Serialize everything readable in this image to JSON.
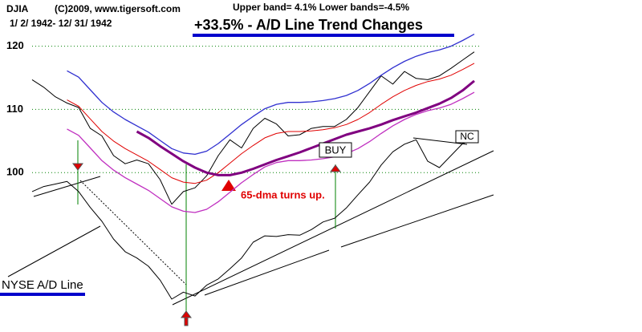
{
  "chart_data": {
    "type": "line",
    "title": "+33.5% -  A/D Line Trend Changes",
    "subtitle": "Upper band= 4.1%  Lower bands=-4.5%",
    "source": "(C)2009, www.tigersoft.com",
    "date_range": "1/ 2/ 1942- 12/ 31/ 1942",
    "annotations": {
      "dma": "65-dma turns up.",
      "buy": "BUY",
      "nc": "NC"
    },
    "categories": [
      null,
      null,
      null,
      null,
      null,
      null,
      null,
      null,
      null,
      null,
      null,
      null,
      null,
      null,
      null,
      null,
      null,
      null,
      null,
      null,
      null,
      null,
      null,
      null,
      null,
      null,
      null,
      null,
      null,
      null,
      null,
      null,
      null,
      null,
      null,
      null,
      null,
      null,
      null
    ],
    "ylim": [
      74.8,
      127.3
    ],
    "yticks": [
      100,
      110,
      120
    ],
    "grid": true,
    "series": [
      {
        "name": "DJIA",
        "color": "#000000",
        "values": [
          114.7,
          113.5,
          112,
          111,
          110.3,
          107,
          105.8,
          102.7,
          101.4,
          102,
          101.4,
          98.9,
          95,
          97,
          97.6,
          99.5,
          102.7,
          105.2,
          103.9,
          107,
          108.6,
          107.7,
          105.8,
          106,
          107,
          107.3,
          107.3,
          108.4,
          110.3,
          112.8,
          115.3,
          114,
          116,
          114.9,
          114.7,
          115.3,
          116.5,
          117.8,
          119.1
        ]
      },
      {
        "color": "#3030d0",
        "values": [
          null,
          null,
          null,
          116.1,
          115.1,
          113.1,
          111.1,
          109.6,
          108.4,
          107.4,
          106.4,
          105.1,
          103.8,
          103.1,
          102.9,
          103.4,
          104.6,
          106.1,
          107.6,
          108.9,
          110.1,
          110.8,
          111.1,
          111.1,
          111.2,
          111.4,
          111.7,
          112.2,
          113,
          114.1,
          115.4,
          116.6,
          117.6,
          118.4,
          119,
          119.4,
          120,
          120.9,
          121.9
        ]
      },
      {
        "color": "#e00000",
        "values": [
          null,
          null,
          null,
          111.5,
          110.5,
          108.5,
          106.5,
          105,
          103.8,
          102.8,
          101.8,
          100.5,
          99.2,
          98.5,
          98.3,
          98.8,
          100,
          101.5,
          103,
          104.3,
          105.5,
          106.2,
          106.5,
          106.5,
          106.6,
          106.8,
          107.1,
          107.6,
          108.4,
          109.5,
          110.8,
          112,
          113,
          113.8,
          114.4,
          114.8,
          115.4,
          116.3,
          117.3
        ]
      },
      {
        "color": "#c030c0",
        "values": [
          null,
          null,
          null,
          106.9,
          105.9,
          103.9,
          101.9,
          100.4,
          99.2,
          98.2,
          97.2,
          95.9,
          94.6,
          93.9,
          93.7,
          94.2,
          95.4,
          96.9,
          98.4,
          99.7,
          100.9,
          101.6,
          101.9,
          101.9,
          102,
          102.2,
          102.5,
          103,
          103.8,
          104.9,
          106.2,
          107.4,
          108.4,
          109.2,
          109.8,
          110.2,
          110.8,
          111.7,
          112.7
        ]
      },
      {
        "color": "#800080",
        "values": [
          null,
          null,
          null,
          null,
          null,
          null,
          null,
          null,
          null,
          106.5,
          105.5,
          104.2,
          103,
          101.8,
          100.8,
          100,
          99.6,
          99.6,
          100,
          100.6,
          101.3,
          102,
          102.6,
          103.2,
          103.9,
          104.6,
          105.3,
          106,
          106.5,
          107,
          107.6,
          108.3,
          108.9,
          109.5,
          110.2,
          110.9,
          111.8,
          113,
          114.5
        ]
      },
      {
        "name": "NYSE A/D Line",
        "color": "#000000",
        "values": [
          97,
          97.8,
          98.2,
          98.6,
          97,
          94.5,
          92.3,
          89.5,
          87.5,
          86.5,
          85.2,
          83,
          80,
          81.1,
          80.5,
          82.2,
          83.2,
          84.8,
          86.5,
          89,
          90,
          89.9,
          90.2,
          90.1,
          91,
          92.2,
          92.8,
          94.4,
          96.5,
          98.5,
          101.2,
          103.3,
          104.5,
          105.2,
          101.8,
          100.8,
          102.7,
          104.6,
          105.2
        ]
      }
    ]
  }
}
